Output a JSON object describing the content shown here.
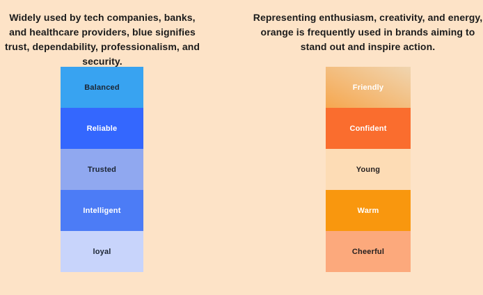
{
  "page": {
    "background_color": "#fde3c7"
  },
  "left_column": {
    "description": "Widely used by tech companies, banks, and healthcare providers, blue signifies trust, dependability, professionalism, and security.",
    "swatches": [
      {
        "label": "Balanced",
        "background": "#38a3f1",
        "text_color": "#1c2533"
      },
      {
        "label": "Reliable",
        "background": "#3467fe",
        "text_color": "#ffffff"
      },
      {
        "label": "Trusted",
        "background": "#90a8f0",
        "text_color": "#1c2533"
      },
      {
        "label": "Intelligent",
        "background": "#4c7cf6",
        "text_color": "#ffffff"
      },
      {
        "label": "loyal",
        "background": "#c8d4fb",
        "text_color": "#1c2533"
      }
    ]
  },
  "right_column": {
    "description": "Representing enthusiasm, creativity, and energy, orange is frequently used in brands aiming to stand out and inspire action.",
    "swatches": [
      {
        "label": "Friendly",
        "background": "linear-gradient(to top right, #f6a74f, #f0d5b0)",
        "text_color": "#ffffff"
      },
      {
        "label": "Confident",
        "background": "#fa6d2e",
        "text_color": "#ffffff"
      },
      {
        "label": "Young",
        "background": "#fddcb5",
        "text_color": "#241f1f"
      },
      {
        "label": "Warm",
        "background": "#f9970e",
        "text_color": "#ffffff"
      },
      {
        "label": "Cheerful",
        "background": "#fca97c",
        "text_color": "#241f1f"
      }
    ]
  }
}
